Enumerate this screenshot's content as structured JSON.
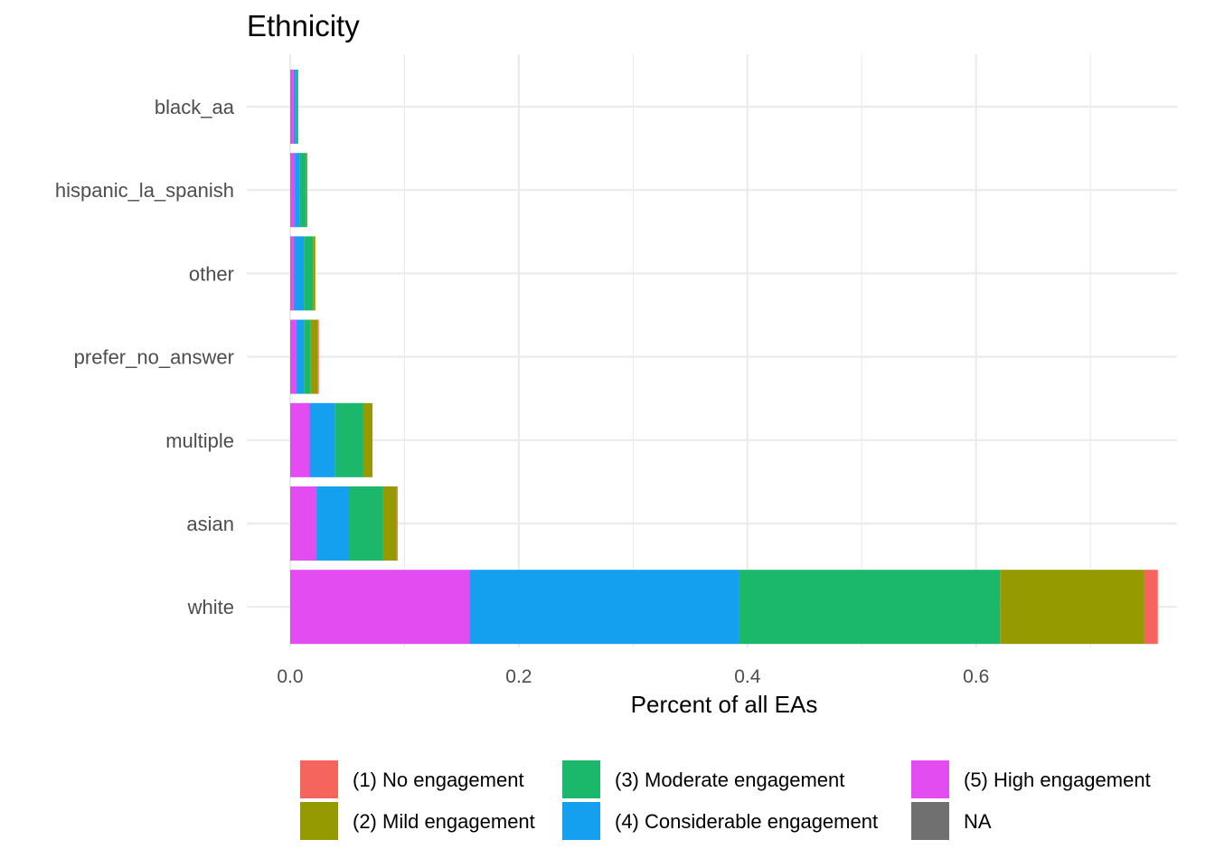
{
  "chart_data": {
    "type": "bar",
    "orientation": "horizontal",
    "stacked": true,
    "title": "Ethnicity",
    "xlabel": "Percent of all EAs",
    "ylabel": "",
    "xlim": [
      0,
      0.76
    ],
    "x_ticks": [
      0.0,
      0.2,
      0.4,
      0.6
    ],
    "x_tick_labels": [
      "0.0",
      "0.2",
      "0.4",
      "0.6"
    ],
    "grid": true,
    "legend_position": "bottom",
    "categories": [
      "black_aa",
      "hispanic_la_spanish",
      "other",
      "prefer_no_answer",
      "multiple",
      "asian",
      "white"
    ],
    "series": [
      {
        "name": "(5) High engagement",
        "color": "#E24CF0",
        "values": [
          0.003,
          0.004,
          0.003,
          0.005,
          0.017,
          0.023,
          0.157
        ]
      },
      {
        "name": "(4) Considerable engagement",
        "color": "#159FEF",
        "values": [
          0.002,
          0.004,
          0.009,
          0.007,
          0.022,
          0.028,
          0.236
        ]
      },
      {
        "name": "(3) Moderate engagement",
        "color": "#1BB76B",
        "values": [
          0.002,
          0.006,
          0.008,
          0.006,
          0.025,
          0.03,
          0.228
        ]
      },
      {
        "name": "(2) Mild engagement",
        "color": "#949A00",
        "values": [
          0.0,
          0.001,
          0.002,
          0.006,
          0.008,
          0.012,
          0.126
        ]
      },
      {
        "name": "(1) No engagement",
        "color": "#F5645D",
        "values": [
          0.0,
          0.0,
          0.0,
          0.001,
          0.0,
          0.001,
          0.012
        ]
      },
      {
        "name": "NA",
        "color": "#707070",
        "values": [
          0.0,
          0.0,
          0.0,
          0.0,
          0.0,
          0.0,
          0.0
        ]
      }
    ],
    "legend": {
      "entries": [
        {
          "label": "(1) No engagement",
          "color": "#F5645D"
        },
        {
          "label": "(2) Mild engagement",
          "color": "#949A00"
        },
        {
          "label": "(3) Moderate engagement",
          "color": "#1BB76B"
        },
        {
          "label": "(4) Considerable engagement",
          "color": "#159FEF"
        },
        {
          "label": "(5) High engagement",
          "color": "#E24CF0"
        },
        {
          "label": "NA",
          "color": "#707070"
        }
      ]
    }
  }
}
